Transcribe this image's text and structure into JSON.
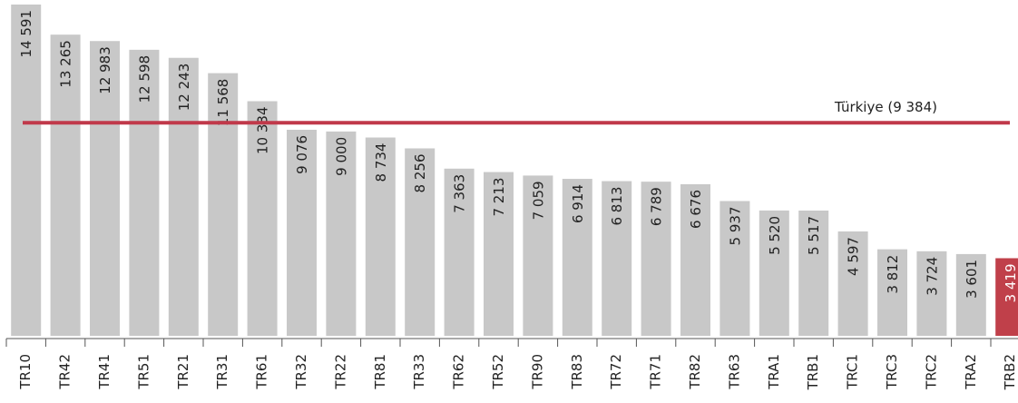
{
  "chart_data": {
    "type": "bar",
    "categories": [
      "TR10",
      "TR42",
      "TR41",
      "TR51",
      "TR21",
      "TR31",
      "TR61",
      "TR32",
      "TR22",
      "TR81",
      "TR33",
      "TR62",
      "TR52",
      "TR90",
      "TR83",
      "TR72",
      "TR71",
      "TR82",
      "TR63",
      "TRA1",
      "TRB1",
      "TRC1",
      "TRC3",
      "TRC2",
      "TRA2",
      "TRB2"
    ],
    "values": [
      14591,
      13265,
      12983,
      12598,
      12243,
      11568,
      10334,
      9076,
      9000,
      8734,
      8256,
      7363,
      7213,
      7059,
      6914,
      6813,
      6789,
      6676,
      5937,
      5520,
      5517,
      4597,
      3812,
      3724,
      3601,
      3419
    ],
    "value_labels": [
      "14 591",
      "13 265",
      "12 983",
      "12 598",
      "12 243",
      "11 568",
      "10 334",
      "9 076",
      "9 000",
      "8 734",
      "8 256",
      "7 363",
      "7 213",
      "7 059",
      "6 914",
      "6 813",
      "6 789",
      "6 676",
      "5 937",
      "5 520",
      "5 517",
      "4 597",
      "3 812",
      "3 724",
      "3 601",
      "3 419"
    ],
    "colors": [
      "#c8c8c8",
      "#c8c8c8",
      "#c8c8c8",
      "#c8c8c8",
      "#c8c8c8",
      "#c8c8c8",
      "#c8c8c8",
      "#c8c8c8",
      "#c8c8c8",
      "#c8c8c8",
      "#c8c8c8",
      "#c8c8c8",
      "#c8c8c8",
      "#c8c8c8",
      "#c8c8c8",
      "#c8c8c8",
      "#c8c8c8",
      "#c8c8c8",
      "#c8c8c8",
      "#c8c8c8",
      "#c8c8c8",
      "#c8c8c8",
      "#c8c8c8",
      "#c8c8c8",
      "#c8c8c8",
      "#c0404a"
    ],
    "ylim": [
      0,
      14591
    ],
    "reference_line": {
      "value": 9384,
      "label": "Türkiye (9 384)",
      "color": "#c0394a"
    }
  }
}
